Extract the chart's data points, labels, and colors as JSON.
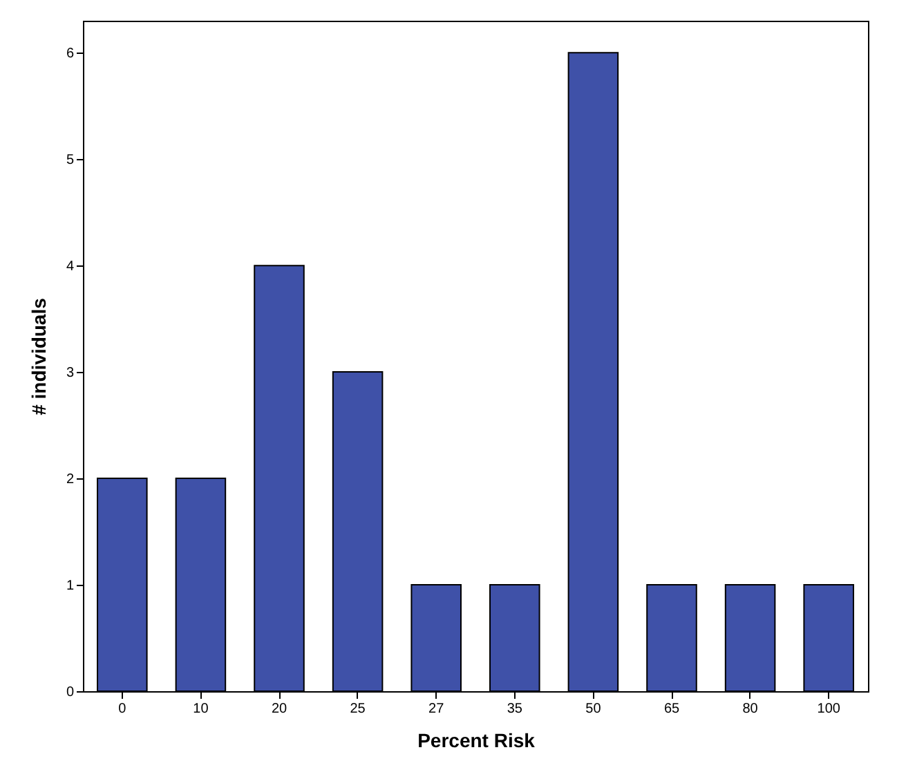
{
  "chart_data": {
    "type": "bar",
    "xlabel": "Percent Risk",
    "ylabel": "# individuals",
    "categories": [
      "0",
      "10",
      "20",
      "25",
      "27",
      "35",
      "50",
      "65",
      "80",
      "100"
    ],
    "values": [
      2,
      2,
      4,
      3,
      1,
      1,
      6,
      1,
      1,
      1
    ],
    "color": "#3f51a8",
    "ylim": [
      0,
      6.3
    ],
    "yticks": [
      0,
      1,
      2,
      3,
      4,
      5,
      6
    ],
    "grid": false
  }
}
